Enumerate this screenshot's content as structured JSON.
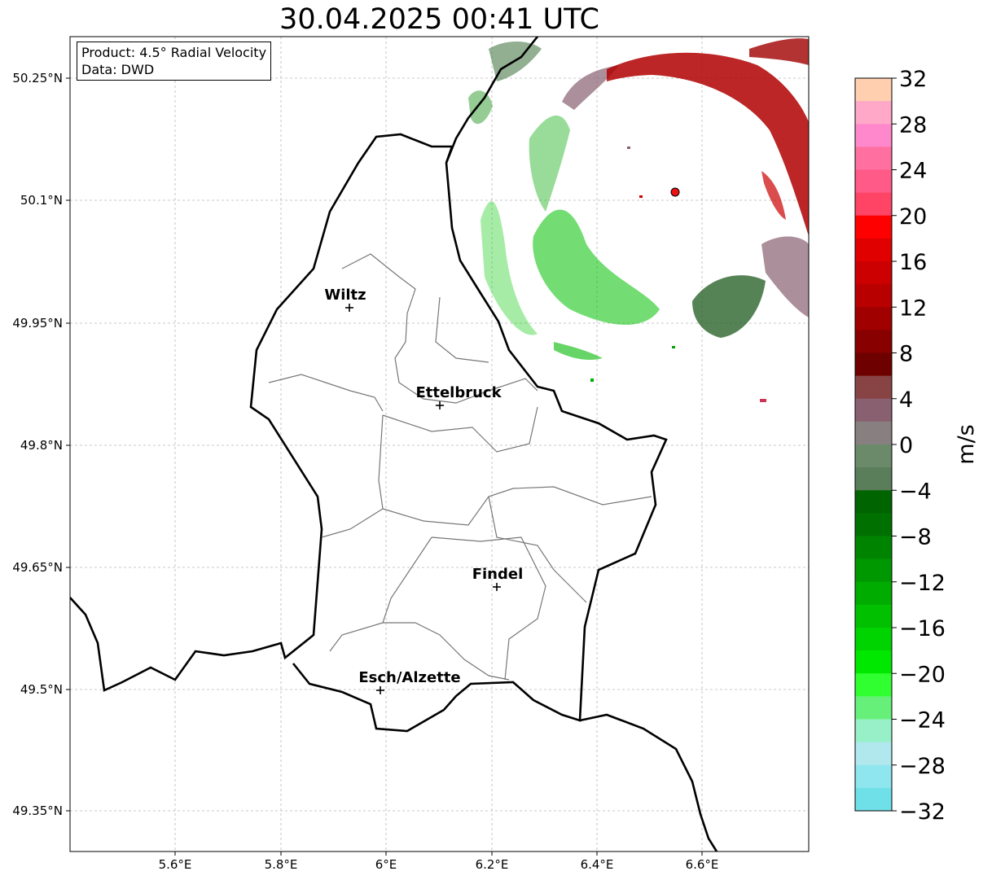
{
  "title": "30.04.2025 00:41 UTC",
  "info": {
    "product": "Product: 4.5° Radial Velocity",
    "data": "Data: DWD"
  },
  "x_ticks": [
    "5.6°E",
    "5.8°E",
    "6°E",
    "6.2°E",
    "6.4°E",
    "6.6°E"
  ],
  "y_ticks": [
    "50.25°N",
    "50.1°N",
    "49.95°N",
    "49.8°N",
    "49.65°N",
    "49.5°N",
    "49.35°N"
  ],
  "cities": [
    {
      "name": "Wiltz",
      "lon": 5.93,
      "lat": 49.967
    },
    {
      "name": "Ettelbruck",
      "lon": 6.1,
      "lat": 49.848
    },
    {
      "name": "Findel",
      "lon": 6.21,
      "lat": 49.626
    },
    {
      "name": "Esch/Alzette",
      "lon": 5.99,
      "lat": 49.497
    }
  ],
  "radar_site": {
    "lon": 6.55,
    "lat": 50.11
  },
  "colorbar": {
    "label": "m/s",
    "ticks": [
      "32",
      "28",
      "24",
      "20",
      "16",
      "12",
      "8",
      "4",
      "0",
      "−4",
      "−8",
      "−12",
      "−16",
      "−20",
      "−24",
      "−28",
      "−32"
    ],
    "range": [
      -32,
      32
    ],
    "colors_top_to_bottom": [
      "#ffcfb0",
      "#ffa8c8",
      "#ff88cc",
      "#ff70a0",
      "#ff5a88",
      "#ff4466",
      "#ff0000",
      "#e00000",
      "#cc0000",
      "#b80000",
      "#a00000",
      "#880000",
      "#6e0000",
      "#884444",
      "#886070",
      "#888080",
      "#6a8a6a",
      "#5a7d5a",
      "#006400",
      "#007000",
      "#008400",
      "#009800",
      "#00ac00",
      "#00c000",
      "#00d400",
      "#00e800",
      "#30ff30",
      "#66f07a",
      "#98f0c8",
      "#b0e8ee",
      "#90e6ee",
      "#70e0e8"
    ]
  }
}
